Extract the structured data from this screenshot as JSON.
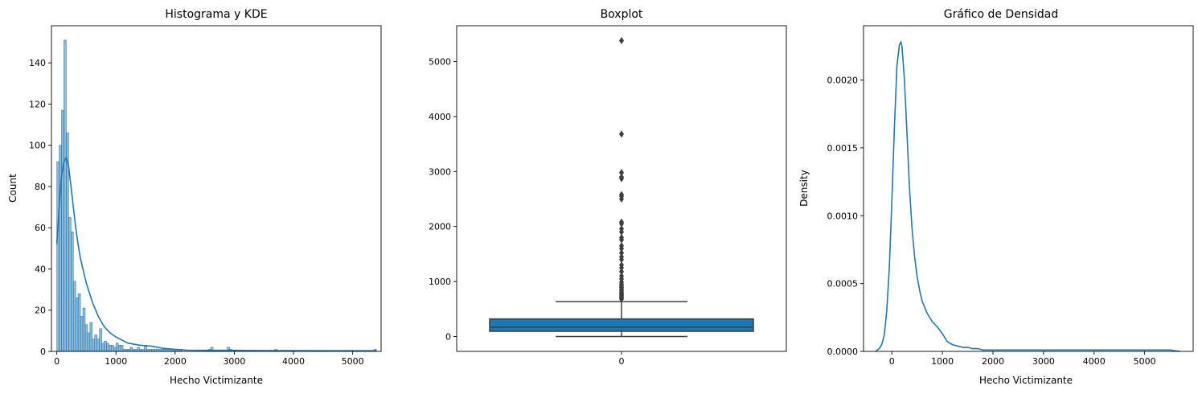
{
  "chart_data": [
    {
      "type": "histogram",
      "title": "Histograma y KDE",
      "xlabel": "Hecho Victimizante",
      "ylabel": "Count",
      "xlim": [
        -90,
        5480
      ],
      "ylim": [
        0,
        158
      ],
      "xticks": [
        0,
        1000,
        2000,
        3000,
        4000,
        5000
      ],
      "yticks": [
        0,
        20,
        40,
        60,
        80,
        100,
        120,
        140
      ],
      "bin_width": 40,
      "bins_start": [
        0,
        40,
        80,
        120,
        160,
        200,
        240,
        280,
        320,
        360,
        400,
        440,
        480,
        520,
        560,
        600,
        640,
        680,
        720,
        760,
        800,
        840,
        880,
        920,
        960,
        1000,
        1040,
        1080,
        1120,
        1160,
        1200,
        1240,
        1280,
        1320,
        1360,
        1400,
        1440,
        1480,
        1520,
        1560,
        1600,
        1640,
        1680,
        1720,
        1760,
        1800,
        1840,
        1880,
        1920,
        1960,
        2000,
        2040,
        2080,
        2560,
        2600,
        2880,
        2920,
        3680,
        5360
      ],
      "counts": [
        92,
        100,
        117,
        151,
        106,
        65,
        58,
        34,
        26,
        28,
        17,
        21,
        13,
        9,
        14,
        6,
        8,
        6,
        11,
        4,
        5,
        4,
        3,
        3,
        2,
        4,
        3,
        3,
        1,
        1,
        1,
        2,
        1,
        1,
        2,
        1,
        1,
        3,
        1,
        1,
        1,
        1,
        1,
        1,
        1,
        1,
        1,
        1,
        1,
        1,
        1,
        1,
        1,
        1,
        2,
        2,
        1,
        1,
        1
      ],
      "kde_x": [
        0,
        40,
        80,
        120,
        160,
        200,
        240,
        280,
        320,
        360,
        400,
        500,
        600,
        700,
        800,
        900,
        1000,
        1200,
        1400,
        1600,
        1800,
        2000,
        2200,
        2500,
        3000,
        3500,
        4000,
        4500,
        5000,
        5400
      ],
      "kde_y": [
        52,
        70,
        85,
        92,
        94,
        90,
        80,
        70,
        60,
        52,
        45,
        33,
        24,
        17,
        12,
        9,
        7,
        4,
        3,
        2.5,
        1.5,
        1,
        0.6,
        0.5,
        0.5,
        0.4,
        0.4,
        0.3,
        0.3,
        0.3
      ],
      "color": "#1f77b4"
    },
    {
      "type": "box",
      "title": "Boxplot",
      "categories": [
        "0"
      ],
      "ylim": [
        -270,
        5650
      ],
      "yticks": [
        0,
        1000,
        2000,
        3000,
        4000,
        5000
      ],
      "whisker_low": 0,
      "q1": 95,
      "median": 170,
      "q3": 320,
      "whisker_high": 635,
      "outliers": [
        680,
        700,
        720,
        740,
        760,
        780,
        800,
        830,
        860,
        890,
        920,
        950,
        990,
        1050,
        1100,
        1180,
        1250,
        1300,
        1400,
        1450,
        1520,
        1600,
        1650,
        1760,
        1800,
        1900,
        1960,
        2050,
        2080,
        2500,
        2550,
        2580,
        2870,
        2900,
        2980,
        3680,
        5380
      ],
      "color": "#1f77b4"
    },
    {
      "type": "line",
      "title": "Gráfico de Densidad",
      "xlabel": "Hecho Victimizante",
      "ylabel": "Density",
      "xlim": [
        -560,
        5960
      ],
      "ylim": [
        0,
        0.0024
      ],
      "xticks": [
        0,
        1000,
        2000,
        3000,
        4000,
        5000
      ],
      "yticks": [
        0.0,
        0.0005,
        0.001,
        0.0015,
        0.002
      ],
      "ytick_labels": [
        "0.0000",
        "0.0005",
        "0.0010",
        "0.0015",
        "0.0020"
      ],
      "x": [
        -320,
        -250,
        -200,
        -150,
        -100,
        -50,
        0,
        50,
        100,
        150,
        180,
        200,
        250,
        300,
        350,
        400,
        450,
        500,
        550,
        600,
        700,
        800,
        900,
        1000,
        1100,
        1200,
        1300,
        1400,
        1500,
        1600,
        1700,
        1800,
        2000,
        2200,
        2400,
        2600,
        2800,
        3000,
        3500,
        4000,
        4500,
        5000,
        5300,
        5500,
        5700
      ],
      "y": [
        0.0,
        2e-05,
        5e-05,
        0.00012,
        0.0003,
        0.00062,
        0.0011,
        0.00165,
        0.0021,
        0.00226,
        0.00228,
        0.00225,
        0.002,
        0.0016,
        0.0012,
        0.0009,
        0.0007,
        0.00055,
        0.00045,
        0.00037,
        0.00028,
        0.00022,
        0.00018,
        0.00013,
        7e-05,
        5e-05,
        4e-05,
        3e-05,
        3e-05,
        2e-05,
        2e-05,
        1e-05,
        1e-05,
        1e-05,
        1e-05,
        1e-05,
        1e-05,
        1e-05,
        1e-05,
        1e-05,
        1e-05,
        1e-05,
        1e-05,
        1e-05,
        0.0
      ],
      "color": "#1f77b4"
    }
  ]
}
